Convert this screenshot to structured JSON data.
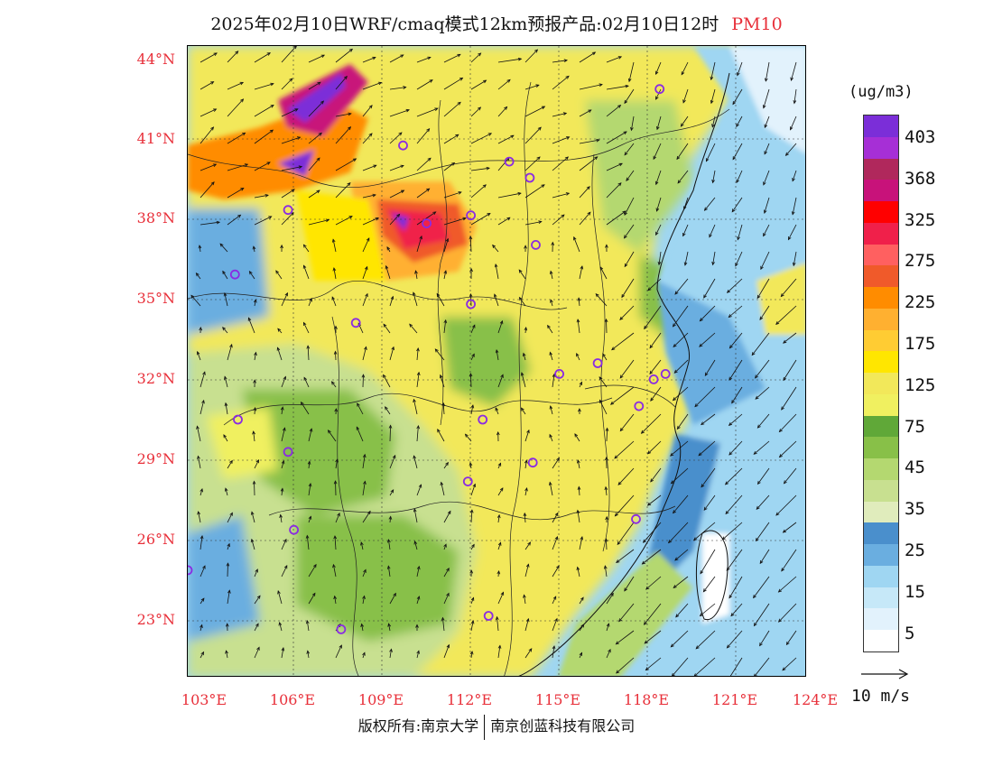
{
  "title": {
    "main": "2025年02月10日WRF/cmaq模式12km预报产品:02月10日12时",
    "variable": "PM10"
  },
  "lat_labels": [
    "44°N",
    "41°N",
    "38°N",
    "35°N",
    "32°N",
    "29°N",
    "26°N",
    "23°N"
  ],
  "lon_labels": [
    "103°E",
    "106°E",
    "109°E",
    "112°E",
    "115°E",
    "118°E",
    "121°E",
    "124°E"
  ],
  "legend": {
    "units": "(ug/m3)",
    "labels": [
      "403",
      "368",
      "325",
      "275",
      "225",
      "175",
      "125",
      "75",
      "45",
      "35",
      "25",
      "15",
      "5"
    ],
    "colors": [
      "#7b2ed8",
      "#a62fd6",
      "#b0285c",
      "#c8127a",
      "#ff0000",
      "#f0204a",
      "#ff6060",
      "#f05a2a",
      "#ff8c00",
      "#ffb030",
      "#ffcc33",
      "#ffe600",
      "#f2e85a",
      "#f0f060",
      "#60a838",
      "#88c048",
      "#b4d870",
      "#c8e090",
      "#e0ecbc",
      "#4a8fcc",
      "#6aaee0",
      "#9fd6f2",
      "#c6e8f8",
      "#e2f2fc",
      "#ffffff"
    ]
  },
  "reference_vector": {
    "label": "10 m/s"
  },
  "copyright": {
    "left": "版权所有:南京大学",
    "right": "南京创蓝科技有限公司"
  },
  "map": {
    "lat_range": [
      21.0,
      44.5
    ],
    "lon_range": [
      103.0,
      124.0
    ],
    "station_count_note": "",
    "station_color": "#8a2be2",
    "stations": [
      {
        "lon": 119.0,
        "lat": 42.9
      },
      {
        "lon": 110.3,
        "lat": 40.8
      },
      {
        "lon": 113.9,
        "lat": 40.2
      },
      {
        "lon": 114.6,
        "lat": 39.6
      },
      {
        "lon": 106.4,
        "lat": 38.4
      },
      {
        "lon": 111.1,
        "lat": 37.9
      },
      {
        "lon": 112.6,
        "lat": 38.2
      },
      {
        "lon": 114.8,
        "lat": 37.1
      },
      {
        "lon": 104.6,
        "lat": 36.0
      },
      {
        "lon": 112.6,
        "lat": 34.9
      },
      {
        "lon": 108.7,
        "lat": 34.2
      },
      {
        "lon": 115.6,
        "lat": 32.3
      },
      {
        "lon": 116.9,
        "lat": 32.7
      },
      {
        "lon": 118.8,
        "lat": 32.1
      },
      {
        "lon": 119.2,
        "lat": 32.3
      },
      {
        "lon": 104.7,
        "lat": 30.6
      },
      {
        "lon": 113.0,
        "lat": 30.6
      },
      {
        "lon": 118.3,
        "lat": 31.1
      },
      {
        "lon": 106.4,
        "lat": 29.4
      },
      {
        "lon": 114.7,
        "lat": 29.0
      },
      {
        "lon": 112.5,
        "lat": 28.3
      },
      {
        "lon": 106.6,
        "lat": 26.5
      },
      {
        "lon": 118.2,
        "lat": 26.9
      },
      {
        "lon": 103.0,
        "lat": 25.0
      },
      {
        "lon": 108.2,
        "lat": 22.8
      },
      {
        "lon": 113.2,
        "lat": 23.3
      }
    ]
  }
}
